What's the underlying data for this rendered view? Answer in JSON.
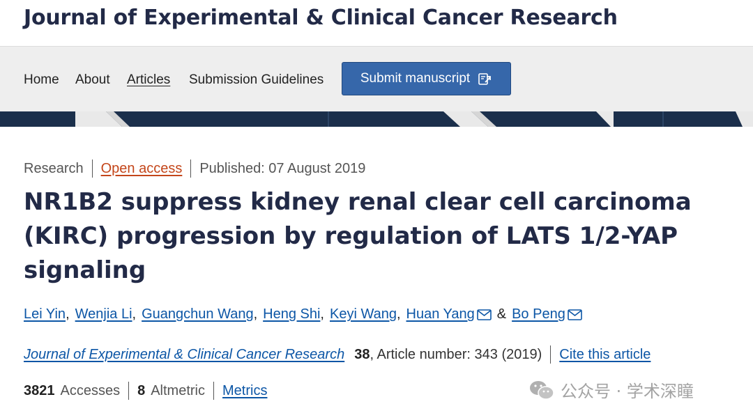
{
  "header": {
    "journal_title": "Journal of Experimental & Clinical Cancer Research"
  },
  "nav": {
    "items": [
      {
        "label": "Home"
      },
      {
        "label": "About"
      },
      {
        "label": "Articles"
      },
      {
        "label": "Submission Guidelines"
      }
    ],
    "submit_label": "Submit manuscript"
  },
  "article": {
    "type": "Research",
    "access": "Open access",
    "published": "Published: 07 August 2019",
    "title": "NR1B2 suppress kidney renal clear cell carcinoma (KIRC) progression by regulation of LATS 1/2-YAP signaling",
    "authors": [
      {
        "name": "Lei Yin"
      },
      {
        "name": "Wenjia Li"
      },
      {
        "name": "Guangchun Wang"
      },
      {
        "name": "Heng Shi"
      },
      {
        "name": "Keyi Wang"
      },
      {
        "name": "Huan Yang"
      },
      {
        "name": "Bo Peng"
      }
    ],
    "ampersand": "&",
    "journal_link": "Journal of Experimental & Clinical Cancer Research",
    "volume": "38",
    "article_number": ", Article number: 343 (2019)",
    "cite_label": "Cite this article",
    "accesses_count": "3821",
    "accesses_label": "Accesses",
    "altmetric_count": "8",
    "altmetric_label": "Altmetric",
    "metrics_label": "Metrics"
  },
  "watermark": {
    "text": "公众号 · 学术深瞳",
    "icon": "wechat-icon"
  },
  "colors": {
    "brand_navy": "#222a47",
    "button_blue": "#3667aa",
    "link_blue": "#0c56a6",
    "open_access_orange": "#c4461a",
    "banner_navy": "#1b2f4b"
  }
}
